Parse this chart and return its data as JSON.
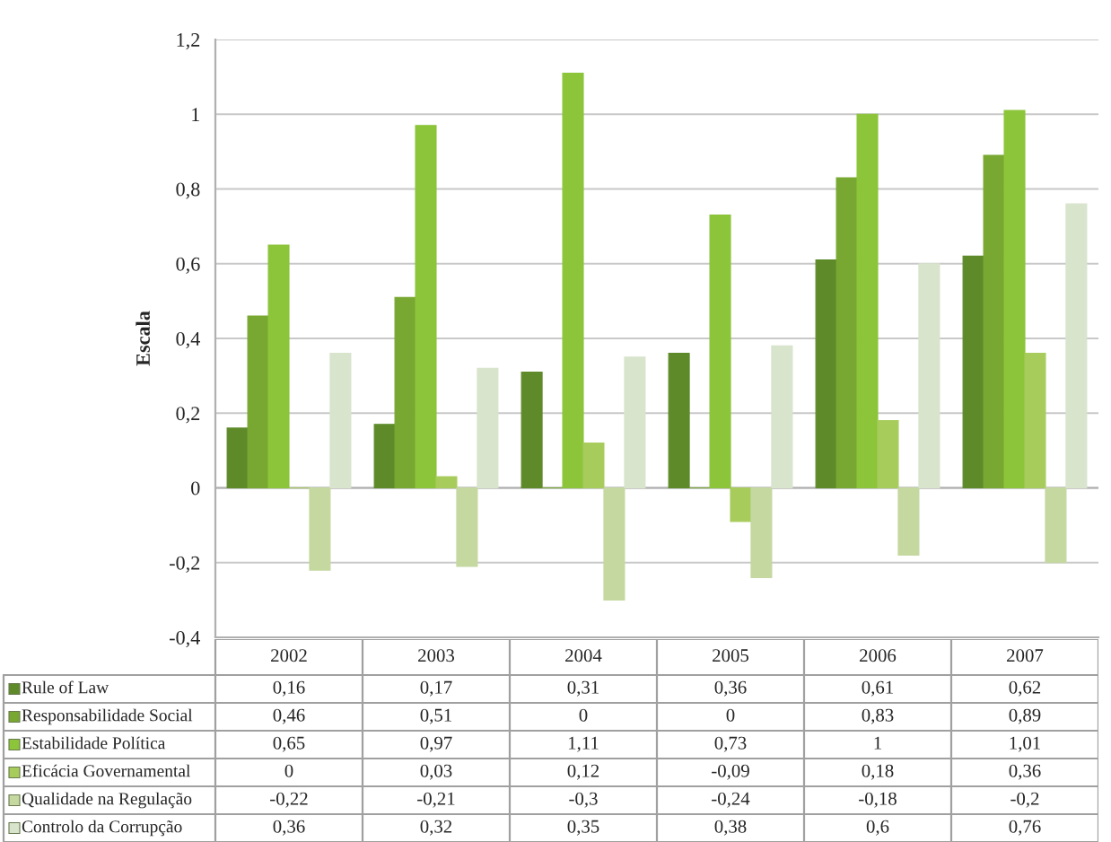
{
  "chart_data": {
    "type": "bar",
    "ylabel": "Escala",
    "categories": [
      "2002",
      "2003",
      "2004",
      "2005",
      "2006",
      "2007"
    ],
    "series": [
      {
        "name": "Rule of Law",
        "color": "#5e8a2a",
        "values": [
          0.16,
          0.17,
          0.31,
          0.36,
          0.61,
          0.62
        ],
        "value_labels": [
          "0,16",
          "0,17",
          "0,31",
          "0,36",
          "0,61",
          "0,62"
        ]
      },
      {
        "name": "Responsabilidade Social",
        "color": "#78a832",
        "values": [
          0.46,
          0.51,
          0,
          0,
          0.83,
          0.89
        ],
        "value_labels": [
          "0,46",
          "0,51",
          "0",
          "0",
          "0,83",
          "0,89"
        ]
      },
      {
        "name": "Estabilidade Política",
        "color": "#8cc43a",
        "values": [
          0.65,
          0.97,
          1.11,
          0.73,
          1,
          1.01
        ],
        "value_labels": [
          "0,65",
          "0,97",
          "1,11",
          "0,73",
          "1",
          "1,01"
        ]
      },
      {
        "name": "Eficácia Governamental",
        "color": "#a8cc5c",
        "values": [
          0,
          0.03,
          0.12,
          -0.09,
          0.18,
          0.36
        ],
        "value_labels": [
          "0",
          "0,03",
          "0,12",
          "-0,09",
          "0,18",
          "0,36"
        ]
      },
      {
        "name": "Qualidade na Regulação",
        "color": "#c4d8a0",
        "values": [
          -0.22,
          -0.21,
          -0.3,
          -0.24,
          -0.18,
          -0.2
        ],
        "value_labels": [
          "-0,22",
          "-0,21",
          "-0,3",
          "-0,24",
          "-0,18",
          "-0,2"
        ]
      },
      {
        "name": "Controlo da Corrupção",
        "color": "#d8e4cc",
        "values": [
          0.36,
          0.32,
          0.35,
          0.38,
          0.6,
          0.76
        ],
        "value_labels": [
          "0,36",
          "0,32",
          "0,35",
          "0,38",
          "0,6",
          "0,76"
        ]
      }
    ],
    "ylim": [
      -0.4,
      1.2
    ],
    "yticks": [
      {
        "value": -0.4,
        "label": "-0,4"
      },
      {
        "value": -0.2,
        "label": "-0,2"
      },
      0,
      {
        "value": 0.2,
        "label": "0,2"
      },
      {
        "value": 0.4,
        "label": "0,4"
      },
      {
        "value": 0.6,
        "label": "0,6"
      },
      {
        "value": 0.8,
        "label": "0,8"
      },
      1,
      {
        "value": 1.2,
        "label": "1,2"
      }
    ],
    "grid": "y",
    "legend": "bottom"
  }
}
